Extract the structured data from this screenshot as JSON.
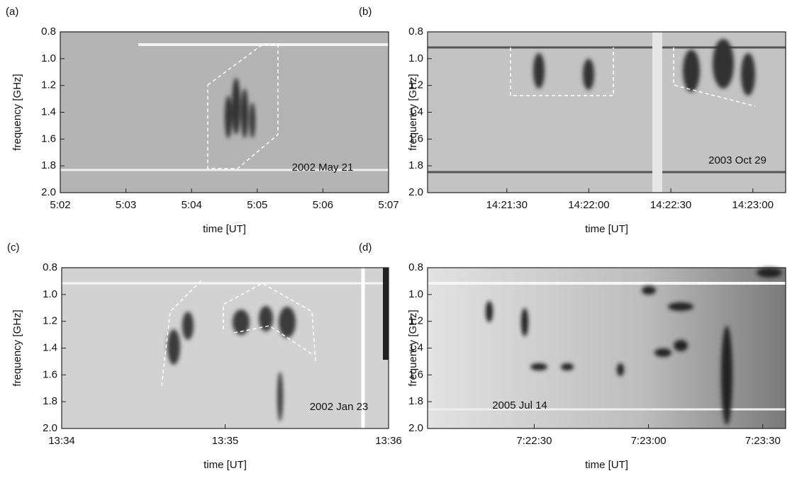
{
  "chart_data": [
    {
      "type": "spectrogram",
      "panel_label": "(a)",
      "annotation": "2002 May 21",
      "xlabel": "time [UT]",
      "ylabel": "frequency [GHz]",
      "xlim": [
        18120,
        18420
      ],
      "xticks": [
        {
          "value": 18120,
          "label": "5:02"
        },
        {
          "value": 18180,
          "label": "5:03"
        },
        {
          "value": 18240,
          "label": "5:04"
        },
        {
          "value": 18300,
          "label": "5:05"
        },
        {
          "value": 18360,
          "label": "5:06"
        },
        {
          "value": 18420,
          "label": "5:07"
        }
      ],
      "ylim": [
        2.0,
        0.8
      ],
      "yticks": [
        0.8,
        {
          "value": 1,
          "label": "1.0"
        },
        1.2,
        1.4,
        1.6,
        1.8,
        {
          "value": 2,
          "label": "2.0"
        }
      ]
    },
    {
      "type": "spectrogram",
      "panel_label": "(b)",
      "annotation": "2003 Oct 29",
      "xlabel": "time [UT]",
      "ylabel": "frequency [GHz]",
      "xlim": [
        51661,
        51792
      ],
      "xticks": [
        {
          "value": 51690,
          "label": "14:21:30"
        },
        {
          "value": 51720,
          "label": "14:22:00"
        },
        {
          "value": 51750,
          "label": "14:22:30"
        },
        {
          "value": 51780,
          "label": "14:23:00"
        }
      ],
      "ylim": [
        2.0,
        0.8
      ],
      "yticks": [
        0.8,
        {
          "value": 1,
          "label": "1.0"
        },
        1.2,
        1.4,
        1.6,
        1.8,
        {
          "value": 2,
          "label": "2.0"
        }
      ]
    },
    {
      "type": "spectrogram",
      "panel_label": "(c)",
      "annotation": "2002 Jan 23",
      "xlabel": "time [UT]",
      "ylabel": "frequency [GHz]",
      "xlim": [
        48840,
        48960
      ],
      "xticks": [
        {
          "value": 48840,
          "label": "13:34"
        },
        {
          "value": 48900,
          "label": "13:35"
        },
        {
          "value": 48960,
          "label": "13:36"
        }
      ],
      "ylim": [
        2.0,
        0.8
      ],
      "yticks": [
        0.8,
        {
          "value": 1,
          "label": "1.0"
        },
        1.2,
        1.4,
        1.6,
        1.8,
        {
          "value": 2,
          "label": "2.0"
        }
      ]
    },
    {
      "type": "spectrogram",
      "panel_label": "(d)",
      "annotation": "2005 Jul 14",
      "xlabel": "time [UT]",
      "ylabel": "frequency [GHz]",
      "xlim": [
        26522,
        26616
      ],
      "xticks": [
        {
          "value": 26550,
          "label": "7:22:30"
        },
        {
          "value": 26580,
          "label": "7:23:00"
        },
        {
          "value": 26610,
          "label": "7:23:30"
        }
      ],
      "ylim": [
        2.0,
        0.8
      ],
      "yticks": [
        0.8,
        {
          "value": 1,
          "label": "1.0"
        },
        1.2,
        1.4,
        1.6,
        1.8,
        {
          "value": 2,
          "label": "2.0"
        }
      ]
    }
  ]
}
